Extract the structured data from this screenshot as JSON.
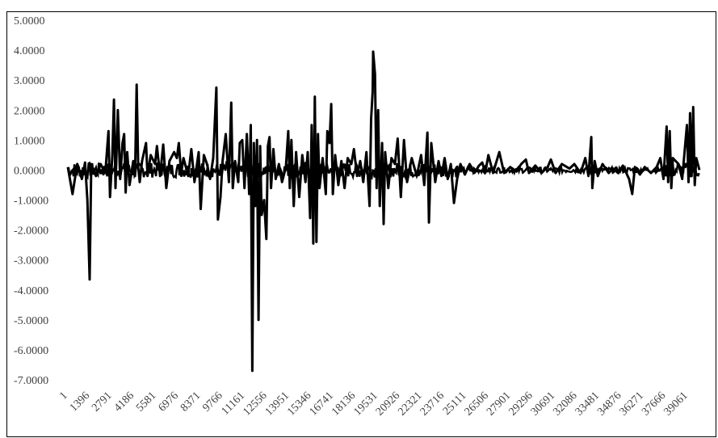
{
  "chart_data": {
    "type": "line",
    "title": "",
    "xlabel": "",
    "ylabel": "",
    "x_tick_labels": [
      "1",
      "1396",
      "2791",
      "4186",
      "5581",
      "6976",
      "8371",
      "9766",
      "11161",
      "12556",
      "13951",
      "15346",
      "16741",
      "18136",
      "19531",
      "20926",
      "22321",
      "23716",
      "25111",
      "26506",
      "27901",
      "29296",
      "30691",
      "32086",
      "33481",
      "34876",
      "36271",
      "37666",
      "39061"
    ],
    "y_tick_labels": [
      "5.0000",
      "4.0000",
      "3.0000",
      "2.0000",
      "1.0000",
      "0.0000",
      "-1.0000",
      "-2.0000",
      "-3.0000",
      "-4.0000",
      "-5.0000",
      "-6.0000",
      "-7.0000"
    ],
    "ylim": [
      -7,
      5
    ],
    "xlim": [
      1,
      40400
    ],
    "grid": false,
    "series_color": "#000000",
    "series": [
      {
        "values": [
          [
            1,
            0.1
          ],
          [
            300,
            -0.8
          ],
          [
            600,
            0.2
          ],
          [
            900,
            -0.3
          ],
          [
            1100,
            0.25
          ],
          [
            1250,
            -1.0
          ],
          [
            1396,
            -3.65
          ],
          [
            1500,
            0.2
          ],
          [
            1800,
            -0.2
          ],
          [
            2100,
            0.2
          ],
          [
            2400,
            -0.1
          ],
          [
            2600,
            1.3
          ],
          [
            2700,
            -0.9
          ],
          [
            2850,
            0.5
          ],
          [
            2950,
            2.35
          ],
          [
            3050,
            -0.6
          ],
          [
            3200,
            2.0
          ],
          [
            3350,
            -0.3
          ],
          [
            3500,
            0.9
          ],
          [
            3600,
            1.2
          ],
          [
            3700,
            -0.75
          ],
          [
            3800,
            0.6
          ],
          [
            3950,
            -0.5
          ],
          [
            4186,
            0.3
          ],
          [
            4300,
            -0.2
          ],
          [
            4400,
            2.85
          ],
          [
            4500,
            0.1
          ],
          [
            4600,
            -0.4
          ],
          [
            4750,
            0.3
          ],
          [
            5000,
            0.9
          ],
          [
            5100,
            -0.2
          ],
          [
            5300,
            0.5
          ],
          [
            5581,
            0.2
          ],
          [
            5700,
            0.8
          ],
          [
            5900,
            -0.2
          ],
          [
            6100,
            0.85
          ],
          [
            6300,
            -0.6
          ],
          [
            6500,
            0.3
          ],
          [
            6800,
            0.6
          ],
          [
            6976,
            0.4
          ],
          [
            7100,
            0.9
          ],
          [
            7250,
            -0.1
          ],
          [
            7400,
            0.4
          ],
          [
            7700,
            -0.2
          ],
          [
            7900,
            0.7
          ],
          [
            8100,
            -0.4
          ],
          [
            8371,
            0.6
          ],
          [
            8500,
            -1.3
          ],
          [
            8700,
            0.5
          ],
          [
            8900,
            0.2
          ],
          [
            9100,
            -0.3
          ],
          [
            9300,
            0.4
          ],
          [
            9500,
            2.75
          ],
          [
            9600,
            -1.65
          ],
          [
            9766,
            -0.9
          ],
          [
            9900,
            0.3
          ],
          [
            10100,
            1.2
          ],
          [
            10300,
            -0.4
          ],
          [
            10450,
            2.25
          ],
          [
            10550,
            -0.6
          ],
          [
            10700,
            0.3
          ],
          [
            10900,
            -0.4
          ],
          [
            11000,
            0.9
          ],
          [
            11161,
            1.0
          ],
          [
            11300,
            -0.6
          ],
          [
            11450,
            1.2
          ],
          [
            11600,
            -0.8
          ],
          [
            11700,
            1.5
          ],
          [
            11800,
            -6.7
          ],
          [
            11900,
            0.9
          ],
          [
            12000,
            -1.2
          ],
          [
            12100,
            1.0
          ],
          [
            12200,
            -5.0
          ],
          [
            12300,
            0.8
          ],
          [
            12400,
            -1.5
          ],
          [
            12556,
            -1.0
          ],
          [
            12700,
            -2.3
          ],
          [
            12800,
            0.8
          ],
          [
            12900,
            1.1
          ],
          [
            13000,
            -0.6
          ],
          [
            13150,
            0.7
          ],
          [
            13300,
            -0.3
          ],
          [
            13500,
            0.2
          ],
          [
            13700,
            -0.4
          ],
          [
            13951,
            0.1
          ],
          [
            14100,
            1.3
          ],
          [
            14200,
            -0.6
          ],
          [
            14300,
            1.0
          ],
          [
            14450,
            -1.2
          ],
          [
            14600,
            0.6
          ],
          [
            14800,
            -0.9
          ],
          [
            15000,
            0.5
          ],
          [
            15200,
            -0.4
          ],
          [
            15346,
            0.6
          ],
          [
            15500,
            -1.6
          ],
          [
            15600,
            1.5
          ],
          [
            15700,
            -2.45
          ],
          [
            15800,
            2.45
          ],
          [
            15900,
            -2.4
          ],
          [
            16000,
            1.2
          ],
          [
            16100,
            -0.6
          ],
          [
            16300,
            0.4
          ],
          [
            16500,
            -0.8
          ],
          [
            16600,
            1.3
          ],
          [
            16741,
            0.9
          ],
          [
            16850,
            2.2
          ],
          [
            16950,
            -0.8
          ],
          [
            17100,
            0.5
          ],
          [
            17300,
            -0.5
          ],
          [
            17500,
            0.3
          ],
          [
            17700,
            -0.6
          ],
          [
            17900,
            0.4
          ],
          [
            18136,
            0.2
          ],
          [
            18300,
            0.7
          ],
          [
            18500,
            -0.2
          ],
          [
            18700,
            0.3
          ],
          [
            18900,
            -0.4
          ],
          [
            19100,
            0.6
          ],
          [
            19300,
            -1.2
          ],
          [
            19400,
            1.7
          ],
          [
            19500,
            2.6
          ],
          [
            19531,
            3.95
          ],
          [
            19650,
            3.2
          ],
          [
            19750,
            -0.6
          ],
          [
            19850,
            2.0
          ],
          [
            19950,
            -1.2
          ],
          [
            20100,
            0.9
          ],
          [
            20200,
            -1.8
          ],
          [
            20300,
            0.6
          ],
          [
            20500,
            -0.6
          ],
          [
            20700,
            0.4
          ],
          [
            20926,
            0.2
          ],
          [
            21100,
            1.05
          ],
          [
            21300,
            -0.9
          ],
          [
            21500,
            1.0
          ],
          [
            21700,
            -0.4
          ],
          [
            22000,
            0.4
          ],
          [
            22321,
            -0.2
          ],
          [
            22600,
            0.5
          ],
          [
            22800,
            -0.5
          ],
          [
            23000,
            1.25
          ],
          [
            23100,
            -1.75
          ],
          [
            23250,
            0.9
          ],
          [
            23500,
            -0.4
          ],
          [
            23716,
            0.3
          ],
          [
            23900,
            -0.2
          ],
          [
            24100,
            0.4
          ],
          [
            24300,
            -0.3
          ],
          [
            24500,
            0.2
          ],
          [
            24700,
            -1.1
          ],
          [
            24900,
            -0.3
          ],
          [
            25111,
            0.2
          ],
          [
            25400,
            -0.15
          ],
          [
            25700,
            0.2
          ],
          [
            26000,
            -0.1
          ],
          [
            26300,
            0.15
          ],
          [
            26506,
            0.25
          ],
          [
            26700,
            -0.1
          ],
          [
            26900,
            0.5
          ],
          [
            27200,
            -0.1
          ],
          [
            27600,
            0.6
          ],
          [
            27901,
            -0.1
          ],
          [
            28300,
            0.1
          ],
          [
            28700,
            -0.05
          ],
          [
            29000,
            0.2
          ],
          [
            29296,
            0.35
          ],
          [
            29500,
            -0.1
          ],
          [
            29900,
            0.15
          ],
          [
            30300,
            -0.1
          ],
          [
            30691,
            0.1
          ],
          [
            30900,
            0.35
          ],
          [
            31200,
            -0.1
          ],
          [
            31600,
            0.2
          ],
          [
            32086,
            0.05
          ],
          [
            32400,
            0.2
          ],
          [
            32800,
            -0.1
          ],
          [
            33100,
            0.4
          ],
          [
            33300,
            -0.2
          ],
          [
            33481,
            1.1
          ],
          [
            33550,
            -0.6
          ],
          [
            33700,
            0.3
          ],
          [
            33900,
            -0.2
          ],
          [
            34200,
            0.2
          ],
          [
            34600,
            -0.1
          ],
          [
            34876,
            0.05
          ],
          [
            35200,
            -0.1
          ],
          [
            35500,
            0.15
          ],
          [
            35900,
            -0.3
          ],
          [
            36100,
            -0.8
          ],
          [
            36271,
            0.1
          ],
          [
            36600,
            -0.15
          ],
          [
            36900,
            0.1
          ],
          [
            37300,
            -0.1
          ],
          [
            37666,
            0.1
          ],
          [
            37900,
            0.4
          ],
          [
            38100,
            -0.3
          ],
          [
            38300,
            1.45
          ],
          [
            38400,
            -0.4
          ],
          [
            38500,
            1.3
          ],
          [
            38600,
            -0.6
          ],
          [
            38700,
            0.4
          ],
          [
            39061,
            0.2
          ],
          [
            39300,
            -0.3
          ],
          [
            39600,
            1.5
          ],
          [
            39700,
            -0.4
          ],
          [
            39800,
            1.9
          ],
          [
            39900,
            -0.2
          ],
          [
            40000,
            2.1
          ],
          [
            40100,
            -0.5
          ],
          [
            40200,
            0.4
          ],
          [
            40400,
            0.0
          ]
        ]
      }
    ]
  }
}
